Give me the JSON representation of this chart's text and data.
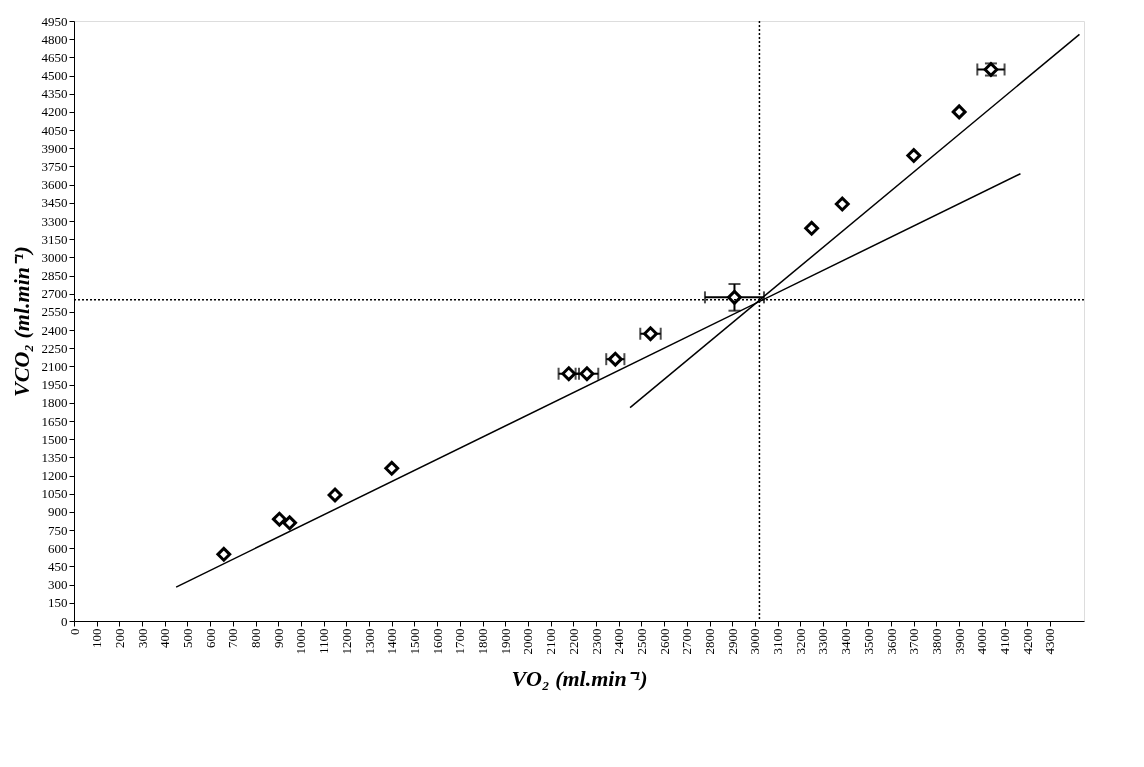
{
  "chart_data": {
    "type": "scatter",
    "xlabel": "VO₂  (ml.min⁻¹)",
    "ylabel": "VCO₂  (ml.min⁻¹)",
    "xlim": [
      0,
      4450
    ],
    "xticks": [
      0,
      100,
      200,
      300,
      400,
      500,
      600,
      700,
      800,
      900,
      1000,
      1100,
      1200,
      1300,
      1400,
      1500,
      1600,
      1700,
      1800,
      1900,
      2000,
      2100,
      2200,
      2300,
      2400,
      2500,
      2600,
      2700,
      2800,
      2900,
      3000,
      3100,
      3200,
      3300,
      3400,
      3500,
      3600,
      3700,
      3800,
      3900,
      4000,
      4100,
      4200,
      4300
    ],
    "ylim": [
      0,
      4950
    ],
    "yticks": [
      0,
      150,
      300,
      450,
      600,
      750,
      900,
      1050,
      1200,
      1350,
      1500,
      1650,
      1800,
      1950,
      2100,
      2250,
      2400,
      2550,
      2700,
      2850,
      3000,
      3150,
      3300,
      3450,
      3600,
      3750,
      3900,
      4050,
      4200,
      4350,
      4500,
      4650,
      4800,
      4950
    ],
    "grid": false,
    "marker": "diamond",
    "series": [
      {
        "color": "#000000",
        "x": [
          660,
          905,
          950,
          1150,
          1400,
          2180,
          2260,
          2385,
          2540,
          2910,
          3250,
          3385,
          3700,
          3900,
          4040
        ],
        "values": [
          550,
          840,
          810,
          1040,
          1260,
          2040,
          2040,
          2160,
          2370,
          2670,
          3240,
          3440,
          3840,
          4200,
          4550
        ],
        "xerrors": [
          null,
          null,
          null,
          null,
          null,
          45,
          50,
          40,
          45,
          130,
          null,
          null,
          null,
          null,
          60
        ],
        "errors": [
          null,
          null,
          null,
          null,
          null,
          null,
          null,
          null,
          null,
          110,
          null,
          null,
          null,
          null,
          50
        ]
      },
      {
        "type": "line",
        "color": "#000000",
        "line_style": "solid",
        "marker": "none",
        "x": [
          450,
          4170
        ],
        "values": [
          280,
          3690
        ]
      },
      {
        "type": "line",
        "color": "#000000",
        "line_style": "solid",
        "marker": "none",
        "x": [
          2450,
          4430
        ],
        "values": [
          1760,
          4840
        ]
      }
    ],
    "ref_lines": [
      {
        "axis": "x",
        "value": 3020,
        "line_style": "dotted",
        "color": "#000000"
      },
      {
        "axis": "y",
        "value": 2650,
        "line_style": "dotted",
        "color": "#000000"
      }
    ]
  }
}
